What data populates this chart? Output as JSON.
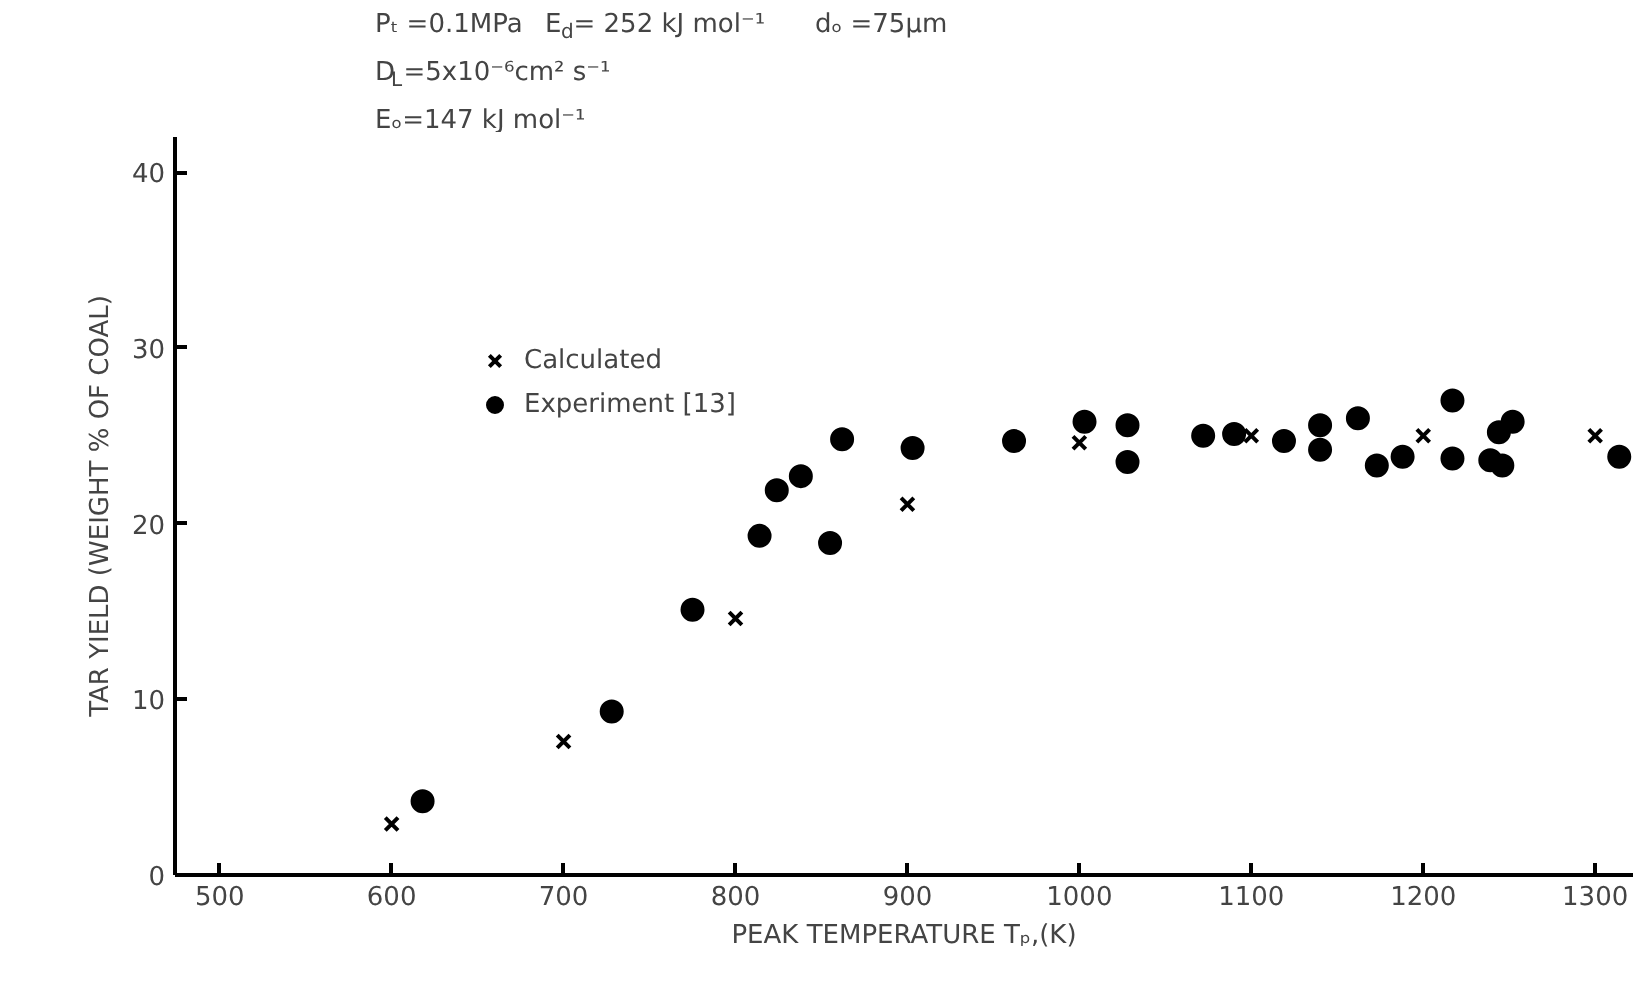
{
  "chart_data": {
    "type": "scatter",
    "xlabel": "PEAK TEMPERATURE Tₚ,(K)",
    "ylabel": "TAR YIELD (WEIGHT % OF COAL)",
    "annotations": [
      "Pₜ =0.1MPa",
      "E$_{d}$= 252 kJ mol⁻¹",
      "dₒ =75µm",
      "D$_{L}$=5x10⁻⁶cm² s⁻¹",
      "Eₒ=147 kJ mol⁻¹"
    ],
    "xlim": [
      474,
      1322
    ],
    "ylim": [
      0,
      42
    ],
    "xticks": [
      500,
      600,
      700,
      800,
      900,
      1000,
      1100,
      1200,
      1300
    ],
    "yticks": [
      0,
      10,
      20,
      30,
      40
    ],
    "grid": false,
    "legend": "top left",
    "series": [
      {
        "name": "Calculated",
        "color": "#000000",
        "marker": "cross",
        "x": [
          600,
          700,
          800,
          900,
          1000,
          1100,
          1200,
          1300
        ],
        "values": [
          2.9,
          7.6,
          14.6,
          21.1,
          24.6,
          25.0,
          25.0,
          25.0
        ]
      },
      {
        "name": "Experiment [13]",
        "color": "#000000",
        "marker": "circle",
        "x": [
          618,
          728,
          775,
          814,
          824,
          838,
          855,
          862,
          903,
          962,
          1003,
          1028,
          1028,
          1072,
          1090,
          1119,
          1140,
          1140,
          1162,
          1173,
          1188,
          1217,
          1217,
          1239,
          1246,
          1244,
          1252,
          1314
        ],
        "values": [
          4.2,
          9.3,
          15.1,
          19.3,
          21.9,
          22.7,
          18.9,
          24.8,
          24.3,
          24.7,
          25.8,
          25.6,
          23.5,
          25.0,
          25.1,
          24.7,
          25.6,
          24.2,
          26.0,
          23.3,
          23.8,
          27.0,
          23.7,
          23.6,
          23.3,
          25.2,
          25.8,
          23.8
        ]
      }
    ]
  }
}
